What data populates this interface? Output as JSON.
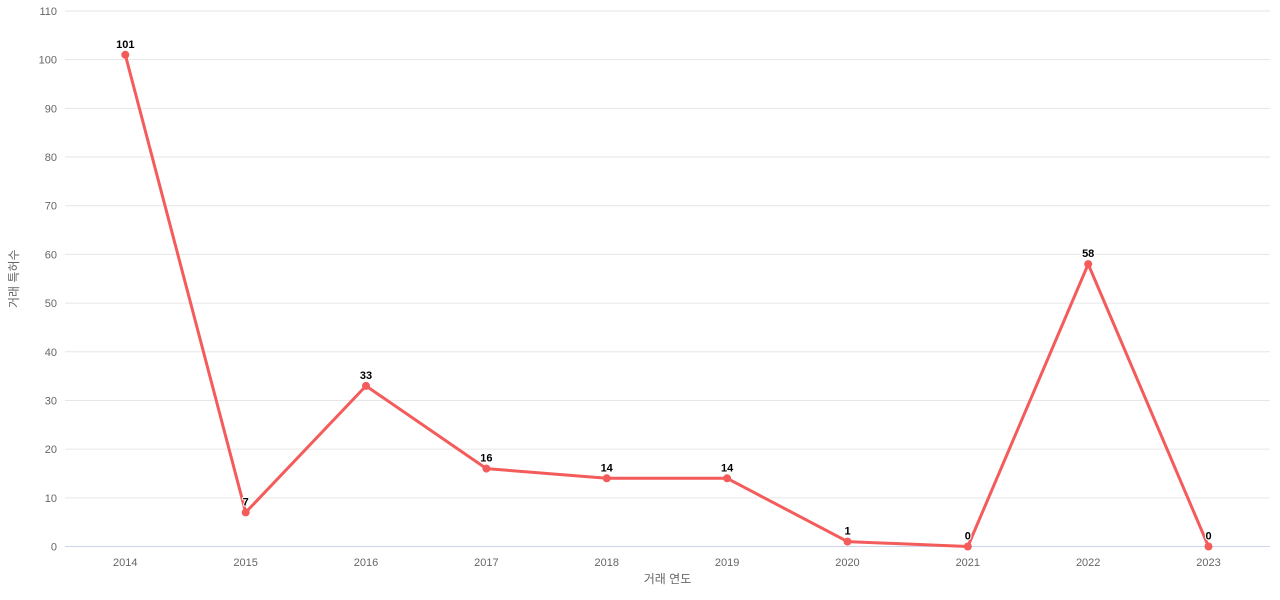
{
  "chart_data": {
    "type": "line",
    "title": "",
    "xlabel": "거래 연도",
    "ylabel": "거래 특허수",
    "categories": [
      "2014",
      "2015",
      "2016",
      "2017",
      "2018",
      "2019",
      "2020",
      "2021",
      "2022",
      "2023"
    ],
    "series": [
      {
        "name": "거래 특허수",
        "values": [
          101,
          7,
          33,
          16,
          14,
          14,
          1,
          0,
          58,
          0
        ]
      }
    ],
    "data_labels": [
      "101",
      "7",
      "33",
      "16",
      "14",
      "14",
      "1",
      "0",
      "58",
      "0"
    ],
    "ylim": [
      0,
      110
    ],
    "ytick_step": 10,
    "yticks": [
      0,
      10,
      20,
      30,
      40,
      50,
      60,
      70,
      80,
      90,
      100,
      110
    ],
    "grid": "horizontal",
    "legend_position": "none",
    "colors": {
      "series": "#f45b5b",
      "marker": "#f45b5b",
      "gridline": "#e6e6e6",
      "axis_line": "#ccd6eb",
      "tick_label": "#666666",
      "axis_title": "#666666",
      "data_label": "#000000",
      "background": "#ffffff"
    }
  }
}
